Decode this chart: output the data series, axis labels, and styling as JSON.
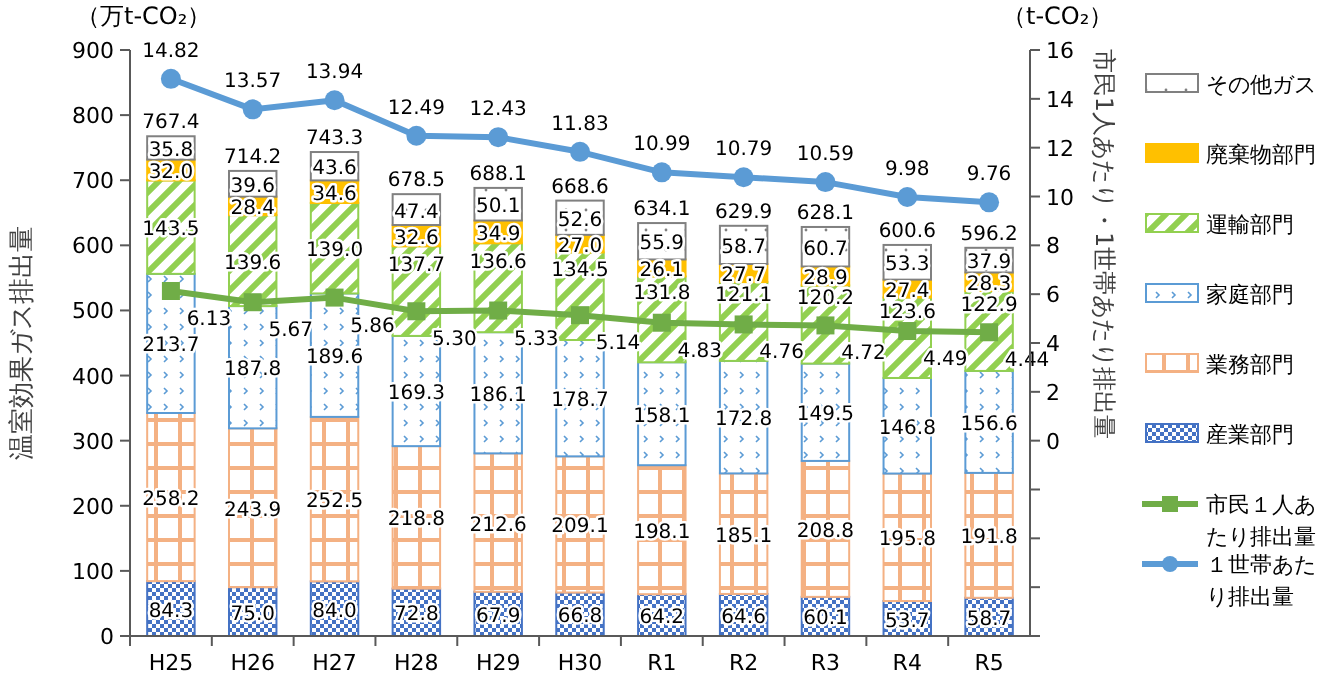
{
  "chart_data": {
    "type": "bar",
    "stacked": true,
    "ylabel": "温室効果ガス排出量",
    "y2label": "市民1人あたり・1世帯あたり排出量",
    "annotations": [
      "（万t-CO₂）",
      "（t-CO₂）"
    ],
    "categories": [
      "H25",
      "H26",
      "H27",
      "H28",
      "H29",
      "H30",
      "R1",
      "R2",
      "R3",
      "R4",
      "R5"
    ],
    "series": [
      {
        "name": "産業部門",
        "color": "#4472c4",
        "values": [
          84.3,
          75.0,
          84.0,
          72.8,
          67.9,
          66.8,
          64.2,
          64.6,
          60.1,
          53.7,
          58.7
        ],
        "value_labels": [
          "84.3",
          "75.0",
          "84.0",
          "72.8",
          "67.9",
          "66.8",
          "64.2",
          "64.6",
          "60.1",
          "53.7",
          "58.7"
        ]
      },
      {
        "name": "業務部門",
        "color": "#f4b183",
        "values": [
          258.2,
          243.9,
          252.5,
          218.8,
          212.6,
          209.1,
          198.1,
          185.1,
          208.8,
          195.8,
          191.8
        ],
        "value_labels": [
          "258.2",
          "243.9",
          "252.5",
          "218.8",
          "212.6",
          "209.1",
          "198.1",
          "185.1",
          "208.8",
          "195.8",
          "191.8"
        ]
      },
      {
        "name": "家庭部門",
        "color": "#5b9bd5",
        "values": [
          213.7,
          187.8,
          189.6,
          169.3,
          186.1,
          178.7,
          158.1,
          172.8,
          149.5,
          146.8,
          156.6
        ],
        "value_labels": [
          "213.7",
          "187.8",
          "189.6",
          "169.3",
          "186.1",
          "178.7",
          "158.1",
          "172.8",
          "149.5",
          "146.8",
          "156.6"
        ]
      },
      {
        "name": "運輸部門",
        "color": "#92d050",
        "values": [
          143.5,
          139.6,
          139.0,
          137.7,
          136.6,
          134.5,
          131.8,
          121.1,
          120.2,
          123.6,
          122.9
        ],
        "value_labels": [
          "143.5",
          "139.6",
          "139.0",
          "137.7",
          "136.6",
          "134.5",
          "131.8",
          "121.1",
          "120.2",
          "123.6",
          "122.9"
        ]
      },
      {
        "name": "廃棄物部門",
        "color": "#ffc000",
        "values": [
          32.0,
          28.4,
          34.6,
          32.6,
          34.9,
          27.0,
          26.1,
          27.7,
          28.9,
          27.4,
          28.3
        ],
        "value_labels": [
          "32.0",
          "28.4",
          "34.6",
          "32.6",
          "34.9",
          "27.0",
          "26.1",
          "27.7",
          "28.9",
          "27.4",
          "28.3"
        ]
      },
      {
        "name": "その他ガス",
        "color": "#808080",
        "values": [
          35.8,
          39.6,
          43.6,
          47.4,
          50.1,
          52.6,
          55.9,
          58.7,
          60.7,
          53.3,
          37.9
        ],
        "value_labels": [
          "35.8",
          "39.6",
          "43.6",
          "47.4",
          "50.1",
          "52.6",
          "55.9",
          "58.7",
          "60.7",
          "53.3",
          "37.9"
        ]
      },
      {
        "name": "市民１人あたり排出量",
        "type": "line",
        "axis": "y2",
        "marker": "square",
        "color": "#70ad47",
        "values": [
          6.13,
          5.67,
          5.86,
          5.3,
          5.33,
          5.14,
          4.83,
          4.76,
          4.72,
          4.49,
          4.44
        ],
        "value_labels": [
          "6.13",
          "5.67",
          "5.86",
          "5.30",
          "5.33",
          "5.14",
          "4.83",
          "4.76",
          "4.72",
          "4.49",
          "4.44"
        ]
      },
      {
        "name": "１世帯あたり排出量",
        "type": "line",
        "axis": "y2",
        "marker": "circle",
        "color": "#5b9bd5",
        "values": [
          14.82,
          13.57,
          13.94,
          12.49,
          12.43,
          11.83,
          10.99,
          10.79,
          10.59,
          9.98,
          9.76
        ],
        "value_labels": [
          "14.82",
          "13.57",
          "13.94",
          "12.49",
          "12.43",
          "11.83",
          "10.99",
          "10.79",
          "10.59",
          "9.98",
          "9.76"
        ]
      }
    ],
    "totals": [
      "767.4",
      "714.2",
      "743.3",
      "678.5",
      "688.1",
      "668.6",
      "634.1",
      "629.9",
      "628.1",
      "600.6",
      "596.2"
    ],
    "legend": "right",
    "grid": false,
    "ylim": [
      0,
      900
    ],
    "yticks": [
      0,
      100,
      200,
      300,
      400,
      500,
      600,
      700,
      800,
      900
    ],
    "y2lim": [
      -8,
      16
    ],
    "y2ticks": [
      {
        "value": -8,
        "label": null
      },
      {
        "value": -6,
        "label": null
      },
      {
        "value": -4,
        "label": null
      },
      {
        "value": -2,
        "label": null
      },
      0,
      2,
      4,
      6,
      8,
      10,
      12,
      14,
      16
    ]
  }
}
